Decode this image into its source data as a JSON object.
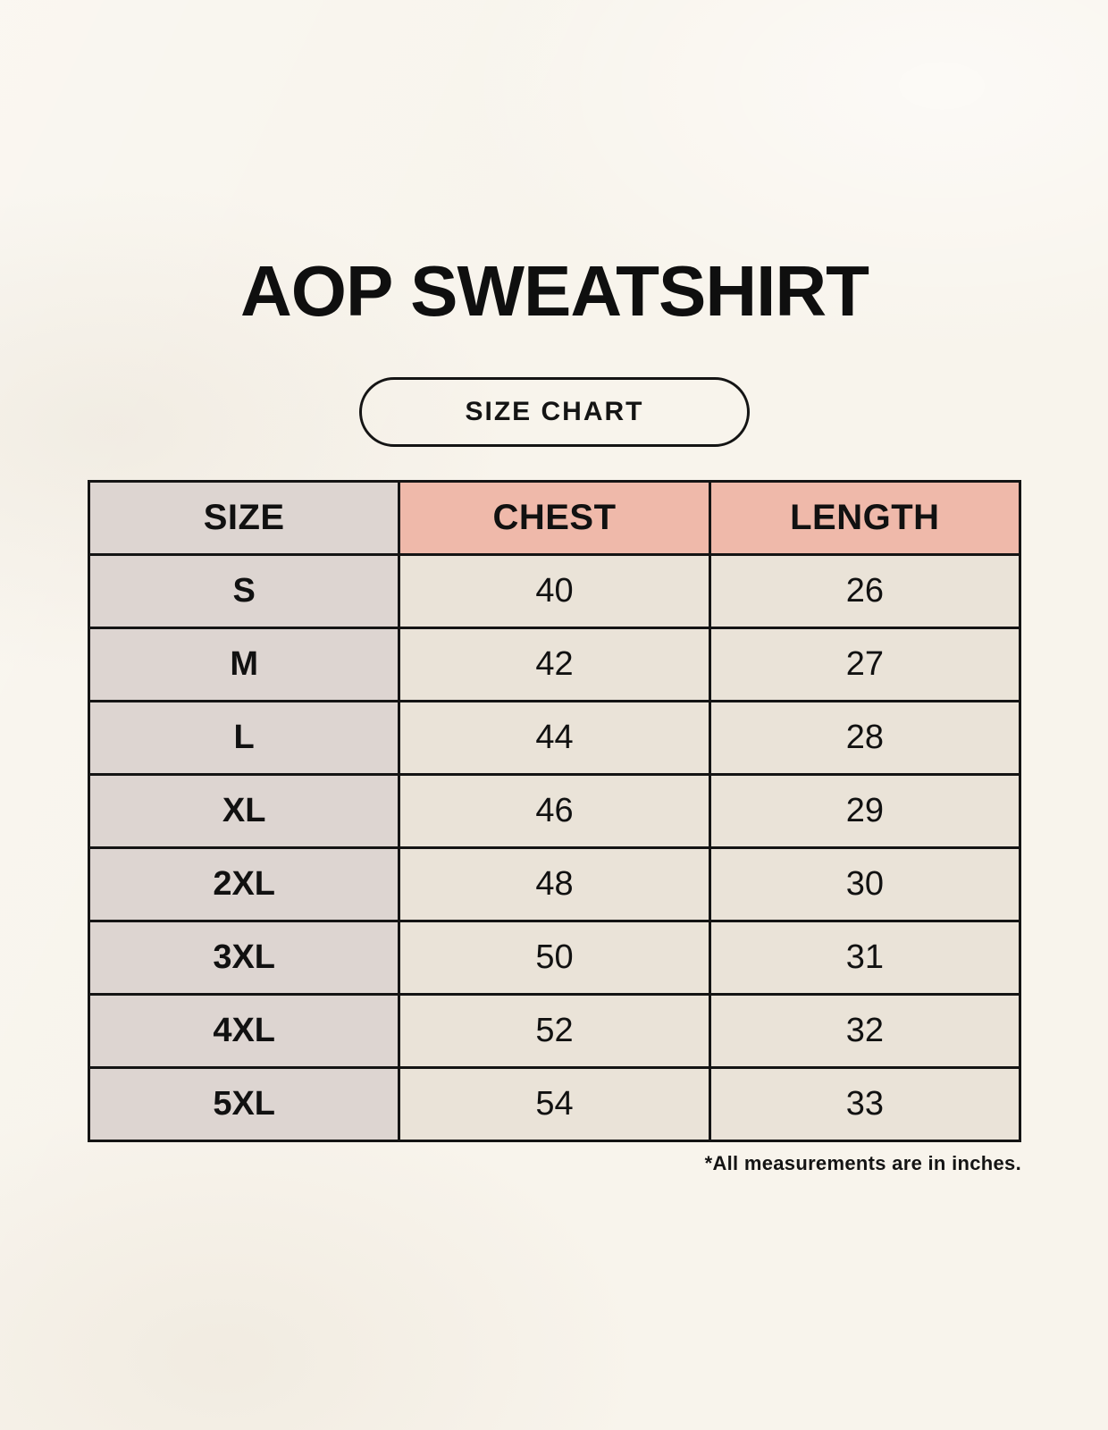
{
  "page": {
    "title": "AOP SWEATSHIRT",
    "badge_label": "SIZE CHART",
    "footnote": "*All measurements are in inches."
  },
  "table": {
    "headers": [
      "SIZE",
      "CHEST",
      "LENGTH"
    ],
    "rows": [
      {
        "size": "S",
        "chest": "40",
        "length": "26"
      },
      {
        "size": "M",
        "chest": "42",
        "length": "27"
      },
      {
        "size": "L",
        "chest": "44",
        "length": "28"
      },
      {
        "size": "XL",
        "chest": "46",
        "length": "29"
      },
      {
        "size": "2XL",
        "chest": "48",
        "length": "30"
      },
      {
        "size": "3XL",
        "chest": "50",
        "length": "31"
      },
      {
        "size": "4XL",
        "chest": "52",
        "length": "32"
      },
      {
        "size": "5XL",
        "chest": "54",
        "length": "33"
      }
    ]
  },
  "colors": {
    "background": "#f8f4ec",
    "size_column_bg": "#ddd5d1",
    "header_accent_bg": "#efb9aa",
    "data_cell_bg": "#eae3d8",
    "border": "#141414",
    "text": "#111111"
  },
  "chart_data": {
    "type": "table",
    "title": "AOP SWEATSHIRT",
    "subtitle": "SIZE CHART",
    "columns": [
      "SIZE",
      "CHEST",
      "LENGTH"
    ],
    "categories": [
      "S",
      "M",
      "L",
      "XL",
      "2XL",
      "3XL",
      "4XL",
      "5XL"
    ],
    "series": [
      {
        "name": "CHEST",
        "values": [
          40,
          42,
          44,
          46,
          48,
          50,
          52,
          54
        ]
      },
      {
        "name": "LENGTH",
        "values": [
          26,
          27,
          28,
          29,
          30,
          31,
          32,
          33
        ]
      }
    ],
    "units": "inches",
    "note": "*All measurements are in inches."
  }
}
